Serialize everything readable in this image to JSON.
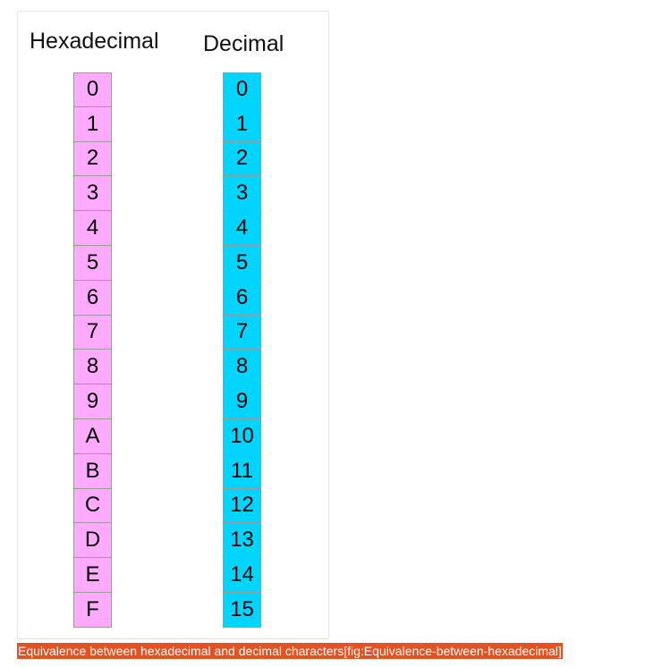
{
  "figure": {
    "hex_header": "Hexadecimal",
    "dec_header": "Decimal",
    "hex_values": [
      "0",
      "1",
      "2",
      "3",
      "4",
      "5",
      "6",
      "7",
      "8",
      "9",
      "A",
      "B",
      "C",
      "D",
      "E",
      "F"
    ],
    "dec_values": [
      "0",
      "1",
      "2",
      "3",
      "4",
      "5",
      "6",
      "7",
      "8",
      "9",
      "10",
      "11",
      "12",
      "13",
      "14",
      "15"
    ],
    "colors": {
      "hex_fill": "#ffaaff",
      "dec_fill": "#00d4ff",
      "caption_bg": "#e25223"
    }
  },
  "caption": "Equivalence between hexadecimal and decimal characters[fig:Equivalence-between-hexadecimal]"
}
